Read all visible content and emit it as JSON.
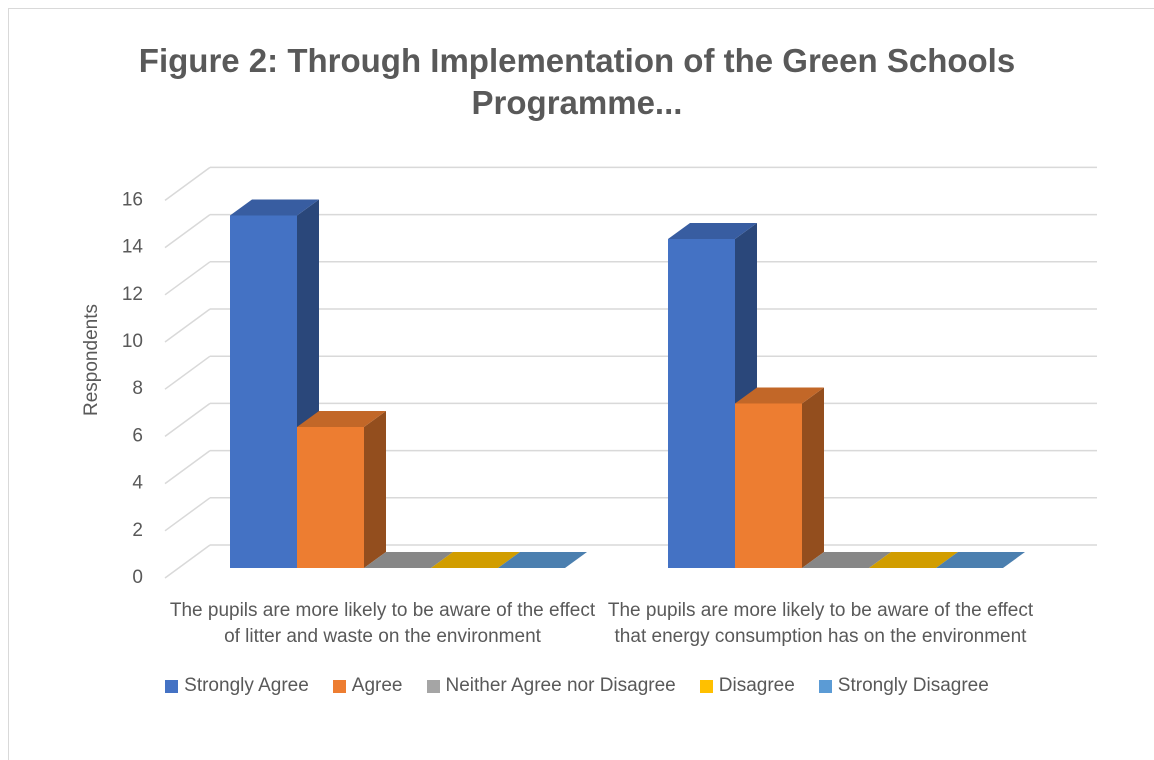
{
  "chart_data": {
    "type": "bar3d",
    "title": "Figure 2: Through Implementation of the Green Schools Programme...",
    "y_label": "Respondents",
    "categories": [
      "The pupils are more likely to be aware of the effect of litter and waste on the environment",
      "The pupils are more likely to be aware of the effect that energy consumption has on the environment"
    ],
    "series": [
      {
        "name": "Strongly Agree",
        "color": "#4472c4",
        "values": [
          15,
          14
        ]
      },
      {
        "name": "Agree",
        "color": "#ed7d31",
        "values": [
          6,
          7
        ]
      },
      {
        "name": "Neither Agree nor Disagree",
        "color": "#a5a5a5",
        "values": [
          0,
          0
        ]
      },
      {
        "name": "Disagree",
        "color": "#ffc000",
        "values": [
          0,
          0
        ]
      },
      {
        "name": "Strongly Disagree",
        "color": "#5b9bd5",
        "values": [
          0,
          0
        ]
      }
    ],
    "ylim": [
      0,
      16
    ],
    "yticks": [
      0,
      2,
      4,
      6,
      8,
      10,
      12,
      14,
      16
    ],
    "grid": true,
    "legend": "bottom"
  }
}
